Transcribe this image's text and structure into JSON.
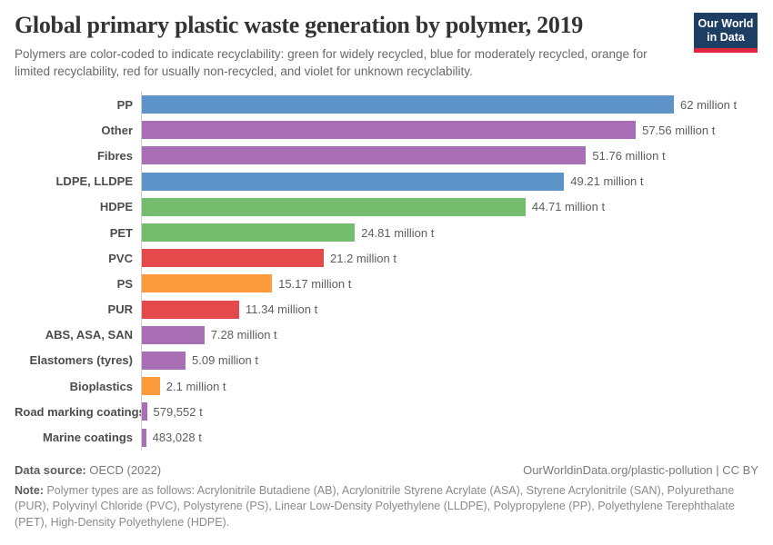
{
  "header": {
    "title": "Global primary plastic waste generation by polymer, 2019",
    "subtitle": "Polymers are color-coded to indicate recyclability: green for widely recycled, blue for moderately recycled, orange for limited recyclability, red for usually non-recycled, and violet for unknown recyclability.",
    "logo": {
      "line1": "Our World",
      "line2": "in Data"
    }
  },
  "chart_data": {
    "type": "bar",
    "orientation": "horizontal",
    "title": "Global primary plastic waste generation by polymer, 2019",
    "unit": "million t",
    "xlim": [
      0,
      62
    ],
    "grid": false,
    "legend": "none (recyclability color-coding described in subtitle)",
    "categories": [
      "PP",
      "Other",
      "Fibres",
      "LDPE, LLDPE",
      "HDPE",
      "PET",
      "PVC",
      "PS",
      "PUR",
      "ABS, ASA, SAN",
      "Elastomers (tyres)",
      "Bioplastics",
      "Road marking coatings",
      "Marine coatings"
    ],
    "values_million_t": [
      62,
      57.56,
      51.76,
      49.21,
      44.71,
      24.81,
      21.2,
      15.17,
      11.34,
      7.28,
      5.09,
      2.1,
      0.579552,
      0.483028
    ],
    "value_labels": [
      "62 million t",
      "57.56 million t",
      "51.76 million t",
      "49.21 million t",
      "44.71 million t",
      "24.81 million t",
      "21.2 million t",
      "15.17 million t",
      "11.34 million t",
      "7.28 million t",
      "5.09 million t",
      "2.1 million t",
      "579,552 t",
      "483,028 t"
    ],
    "bar_colors": [
      "blue",
      "violet",
      "violet",
      "blue",
      "green",
      "green",
      "red",
      "orange",
      "red",
      "violet",
      "violet",
      "orange",
      "violet",
      "violet"
    ],
    "palette": {
      "blue": "#5d93c8",
      "green": "#74bd6e",
      "orange": "#fb9b3b",
      "red": "#e4494b",
      "violet": "#a96fb4"
    },
    "color_meaning": {
      "green": "widely recycled",
      "blue": "moderately recycled",
      "orange": "limited recyclability",
      "red": "usually non-recycled",
      "violet": "unknown recyclability"
    }
  },
  "footer": {
    "source_label": "Data source:",
    "source_value": "OECD (2022)",
    "link": "OurWorldinData.org/plastic-pollution | CC BY",
    "note_label": "Note:",
    "note_text": "Polymer types are as follows: Acrylonitrile Butadiene (AB), Acrylonitrile Styrene Acrylate (ASA), Styrene Acrylonitrile (SAN), Polyurethane (PUR), Polyvinyl Chloride (PVC), Polystyrene (PS), Linear Low-Density Polyethylene (LLDPE), Polypropylene (PP), Polyethylene Terephthalate (PET), High-Density Polyethylene (HDPE)."
  },
  "layout_colors": {
    "axis_line": "#cccccc",
    "title_text": "#333333",
    "logo_bg": "#1d3d63",
    "logo_accent": "#e0263d"
  }
}
